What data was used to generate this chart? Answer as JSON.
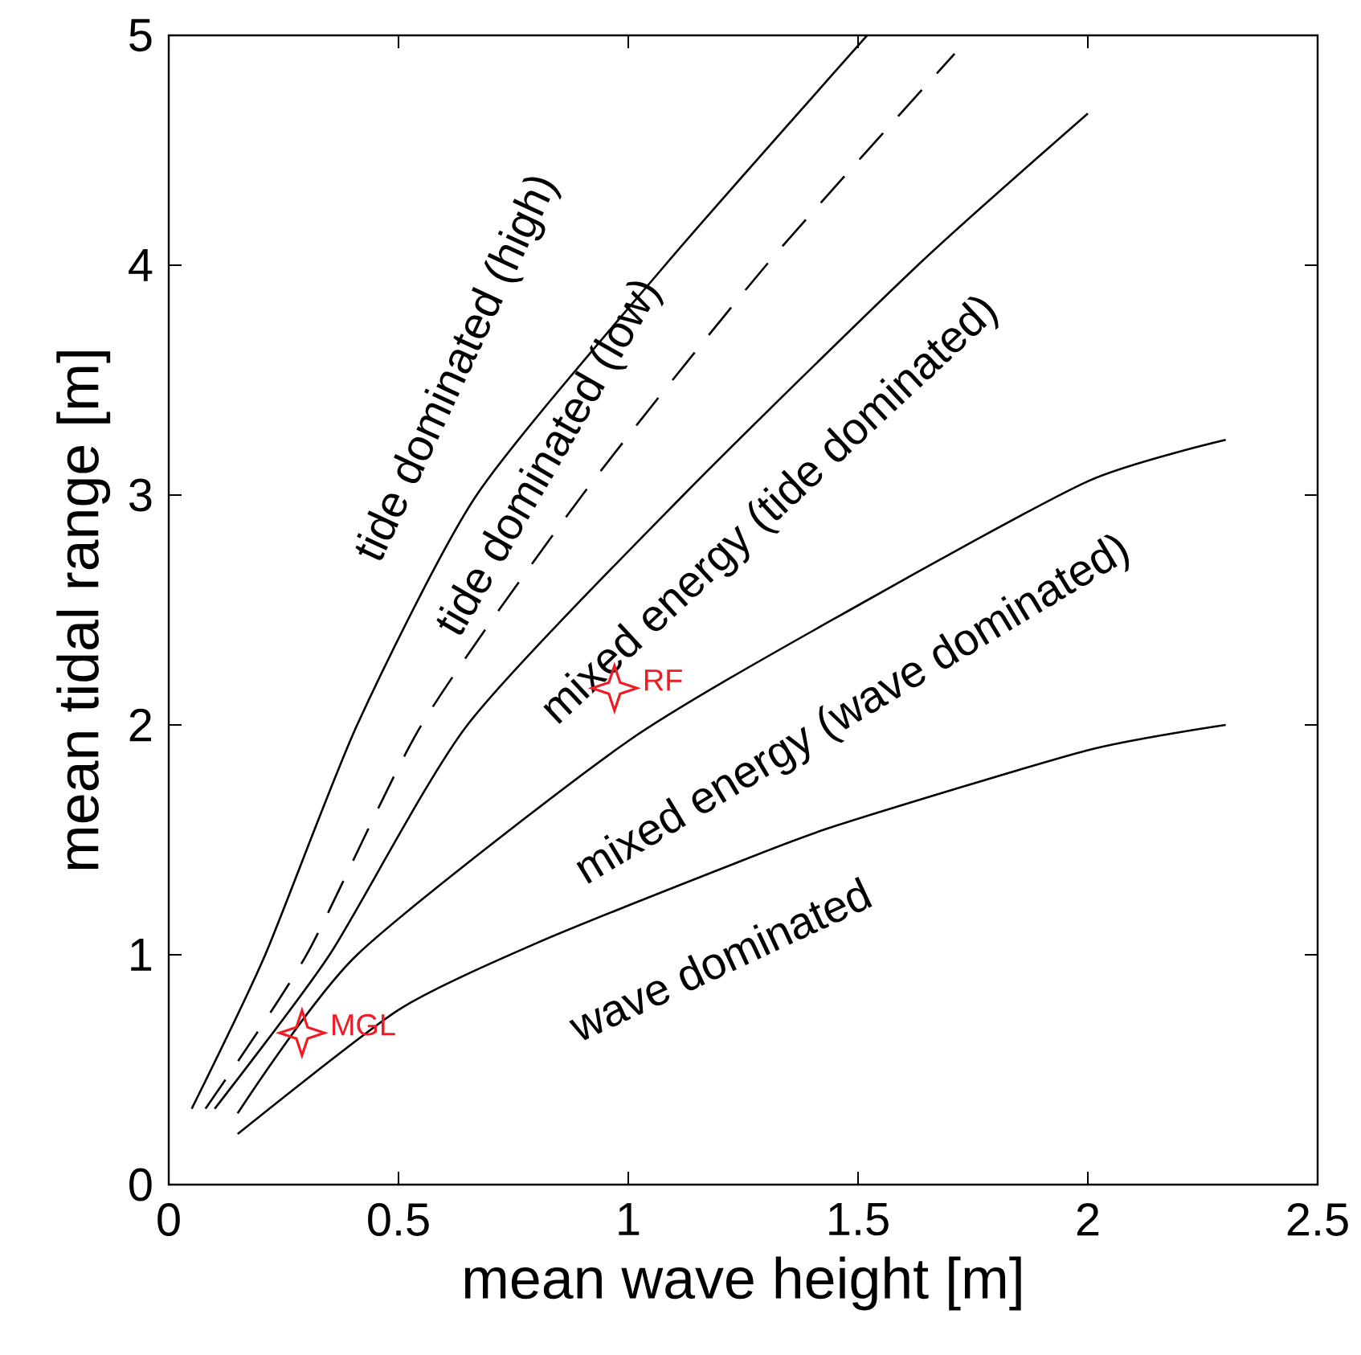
{
  "chart_data": {
    "type": "line",
    "xlabel": "mean wave height [m]",
    "ylabel": "mean tidal range [m]",
    "xlim": [
      0,
      2.5
    ],
    "ylim": [
      0,
      5
    ],
    "xticks": [
      0,
      0.5,
      1,
      1.5,
      2,
      2.5
    ],
    "yticks": [
      0,
      1,
      2,
      3,
      4,
      5
    ],
    "series": [
      {
        "color": "#000000",
        "line_style": "solid",
        "x": [
          0.05,
          0.21,
          0.41,
          0.67,
          1.08,
          1.52
        ],
        "values": [
          0.33,
          1.0,
          2.0,
          3.0,
          4.0,
          5.0
        ]
      },
      {
        "color": "#000000",
        "line_style": "dashed",
        "x": [
          0.08,
          0.3,
          0.55,
          0.9,
          1.3,
          1.71
        ],
        "values": [
          0.33,
          1.0,
          2.0,
          3.0,
          4.0,
          4.92
        ]
      },
      {
        "color": "#000000",
        "line_style": "solid",
        "x": [
          0.1,
          0.35,
          0.65,
          1.12,
          1.63,
          2.0
        ],
        "values": [
          0.33,
          1.0,
          2.0,
          3.0,
          4.0,
          4.66
        ]
      },
      {
        "color": "#000000",
        "line_style": "solid",
        "x": [
          0.15,
          0.41,
          1.0,
          1.5,
          2.0,
          2.3
        ],
        "values": [
          0.31,
          1.0,
          1.93,
          2.52,
          3.06,
          3.24
        ]
      },
      {
        "color": "#000000",
        "line_style": "solid",
        "x": [
          0.15,
          0.5,
          0.8,
          1.21,
          1.45,
          2.0,
          2.3
        ],
        "values": [
          0.22,
          0.76,
          1.05,
          1.38,
          1.56,
          1.89,
          2.0
        ]
      },
      {
        "type": "scatter",
        "name": "MGL",
        "color": "#ee1c25",
        "marker": "star",
        "x": [
          0.29
        ],
        "values": [
          0.66
        ]
      },
      {
        "type": "scatter",
        "name": "RF",
        "color": "#ee1c25",
        "marker": "star",
        "x": [
          0.97
        ],
        "values": [
          2.16
        ]
      }
    ],
    "annotations": [
      "tide dominated (high)",
      "tide dominated (low)",
      "mixed energy (tide dominated)",
      "mixed energy (wave dominated)",
      "wave dominated"
    ]
  }
}
